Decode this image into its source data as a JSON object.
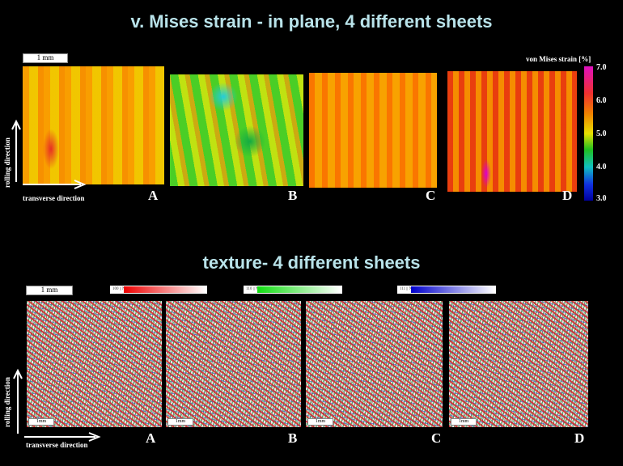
{
  "top": {
    "title": "v. Mises strain - in plane, 4 different sheets",
    "scale": "1 mm",
    "rolling": "rolling direction",
    "transverse": "transverse direction",
    "colorbar": {
      "title": "von Mises strain [%]",
      "ticks": [
        "7.0",
        "6.0",
        "5.0",
        "4.0",
        "3.0"
      ]
    },
    "labels": [
      "A",
      "B",
      "C",
      "D"
    ]
  },
  "bottom": {
    "title": "texture- 4 different sheets",
    "scale": "1 mm",
    "inner_scale": "1mm",
    "rolling": "rolling direction",
    "transverse": "transverse direction",
    "legends": [
      "100 || ND",
      "110 || ND",
      "111 || ND"
    ],
    "labels": [
      "A",
      "B",
      "C",
      "D"
    ]
  },
  "colors": {
    "title": "#b9e3ea",
    "red": "#ee1111",
    "green": "#22dd22",
    "blue": "#1111cc"
  }
}
